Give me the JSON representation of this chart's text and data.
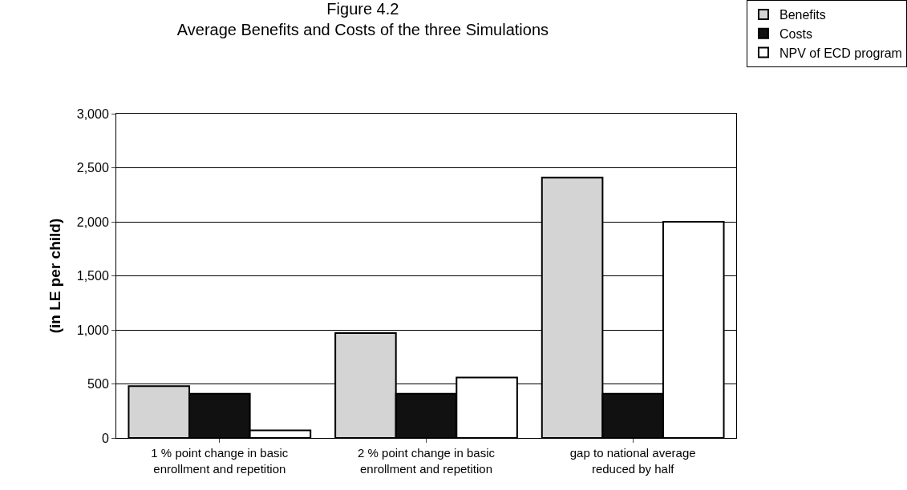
{
  "chart_data": {
    "type": "bar",
    "title": "Figure 4.2",
    "subtitle": "Average Benefits and Costs of the three Simulations",
    "ylabel": "(in LE per child)",
    "categories": [
      "1 % point change in basic enrollment and repetition",
      "2 % point change in basic enrollment and repetition",
      "gap to national average reduced by half"
    ],
    "series": [
      {
        "name": "Benefits",
        "color": "#d4d4d4",
        "values": [
          480,
          970,
          2410
        ]
      },
      {
        "name": "Costs",
        "color": "#111111",
        "values": [
          410,
          410,
          410
        ]
      },
      {
        "name": "NPV of ECD program",
        "color": "#ffffff",
        "values": [
          70,
          560,
          2000
        ]
      }
    ],
    "ylim": [
      0,
      3000
    ],
    "yticks": [
      {
        "value": 0,
        "label": "0"
      },
      {
        "value": 500,
        "label": "500"
      },
      {
        "value": 1000,
        "label": "1,000"
      },
      {
        "value": 1500,
        "label": "1,500"
      },
      {
        "value": 2000,
        "label": "2,000"
      },
      {
        "value": 2500,
        "label": "2,500"
      },
      {
        "value": 3000,
        "label": "3,000"
      }
    ],
    "grid": "y",
    "legend": "top right"
  }
}
